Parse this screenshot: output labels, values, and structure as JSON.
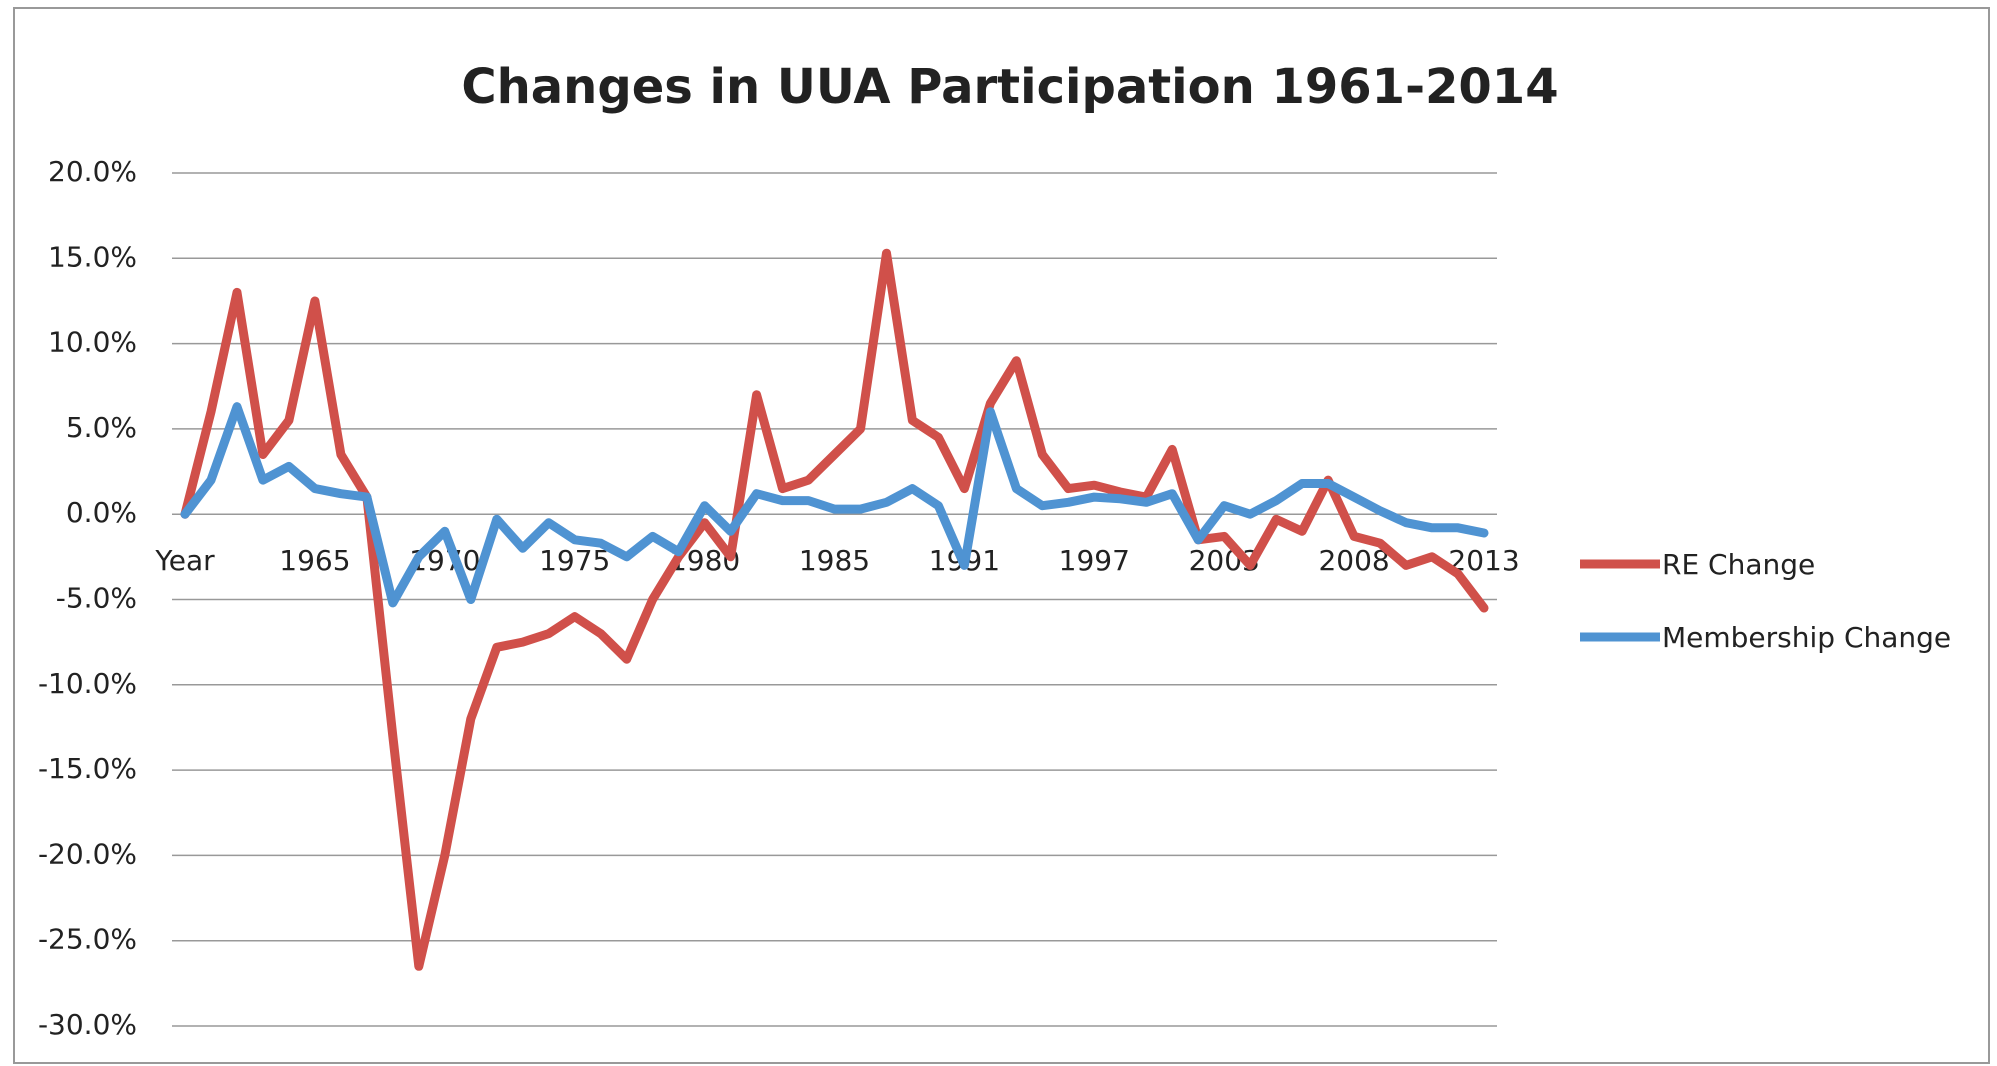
{
  "chart_data": {
    "type": "line",
    "title": "Changes in UUA Participation 1961-2014",
    "categories": [
      "Year",
      null,
      null,
      null,
      null,
      "1965",
      null,
      null,
      null,
      null,
      "1970",
      null,
      null,
      null,
      null,
      "1975",
      null,
      null,
      null,
      null,
      "1980",
      null,
      null,
      null,
      null,
      "1985",
      null,
      null,
      null,
      null,
      "1991",
      null,
      null,
      null,
      null,
      "1997",
      null,
      null,
      null,
      null,
      "2003",
      null,
      null,
      null,
      null,
      "2008",
      null,
      null,
      null,
      null,
      "2013"
    ],
    "series": [
      {
        "name": "RE Change",
        "color": "#d0504a",
        "values": [
          0,
          6,
          13,
          3.5,
          5.5,
          12.5,
          3.5,
          1,
          -13,
          -26.5,
          -20,
          -12,
          -7.8,
          -7.5,
          -7,
          -6,
          -7,
          -8.5,
          -5,
          -2.5,
          -0.5,
          -2.5,
          7,
          1.5,
          2,
          3.5,
          5,
          15.3,
          5.5,
          4.5,
          1.5,
          6.5,
          9,
          3.5,
          1.5,
          1.7,
          1.3,
          1,
          3.8,
          -1.5,
          -1.3,
          -3,
          -0.3,
          -1,
          2,
          -1.3,
          -1.7,
          -3,
          -2.5,
          -3.5,
          -5.5
        ]
      },
      {
        "name": "Membership Change",
        "color": "#4f93d2",
        "values": [
          0,
          2,
          6.3,
          2,
          2.8,
          1.5,
          1.2,
          1,
          -5.2,
          -2.5,
          -1,
          -5,
          -0.3,
          -2,
          -0.5,
          -1.5,
          -1.7,
          -2.5,
          -1.3,
          -2.2,
          0.5,
          -1,
          1.2,
          0.8,
          0.8,
          0.3,
          0.3,
          0.7,
          1.5,
          0.5,
          -3,
          6,
          1.5,
          0.5,
          0.7,
          1,
          0.9,
          0.7,
          1.2,
          -1.5,
          0.5,
          0,
          0.8,
          1.8,
          1.8,
          1,
          0.2,
          -0.5,
          -0.8,
          -0.8,
          -1.1
        ]
      }
    ],
    "ylim": [
      -30,
      20
    ],
    "yticks": [
      {
        "value": -30,
        "label": "-30.0%"
      },
      {
        "value": -25,
        "label": "-25.0%"
      },
      {
        "value": -20,
        "label": "-20.0%"
      },
      {
        "value": -15,
        "label": "-15.0%"
      },
      {
        "value": -10,
        "label": "-10.0%"
      },
      {
        "value": -5,
        "label": "-5.0%"
      },
      {
        "value": 0,
        "label": "0.0%"
      },
      {
        "value": 5,
        "label": "5.0%"
      },
      {
        "value": 10,
        "label": "10.0%"
      },
      {
        "value": 15,
        "label": "15.0%"
      },
      {
        "value": 20,
        "label": "20.0%"
      }
    ],
    "grid": true,
    "legend": "right"
  }
}
